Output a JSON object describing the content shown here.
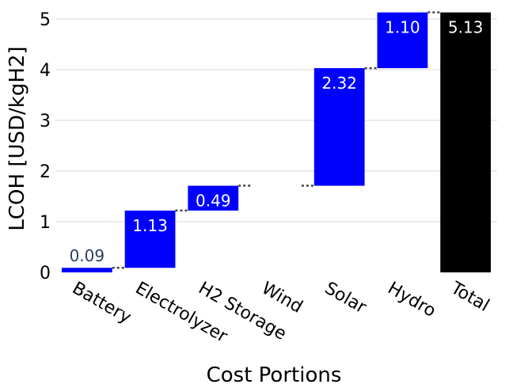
{
  "chart_data": {
    "type": "bar",
    "subtype": "waterfall",
    "title": "",
    "xlabel": "Cost Portions",
    "ylabel": "LCOH [USD/kgH2]",
    "categories": [
      "Battery",
      "Electrolyzer",
      "H2 Storage",
      "Wind",
      "Solar",
      "Hydro",
      "Total"
    ],
    "values": [
      0.09,
      1.13,
      0.49,
      0,
      2.32,
      1.1,
      5.13
    ],
    "labels": [
      "0.09",
      "1.13",
      "0.49",
      "",
      "2.32",
      "1.10",
      "5.13"
    ],
    "measure": [
      "relative",
      "relative",
      "relative",
      "relative",
      "relative",
      "relative",
      "total"
    ],
    "ylim": [
      0,
      5.2
    ],
    "yticks": [
      0,
      1,
      2,
      3,
      4,
      5
    ],
    "ytick_labels": [
      "0",
      "1",
      "2",
      "3",
      "4",
      "5"
    ],
    "grid": true,
    "colors": {
      "increase": "#0000ff",
      "total": "#000000",
      "connector": "#444444",
      "grid": "#d9d9d9"
    }
  }
}
